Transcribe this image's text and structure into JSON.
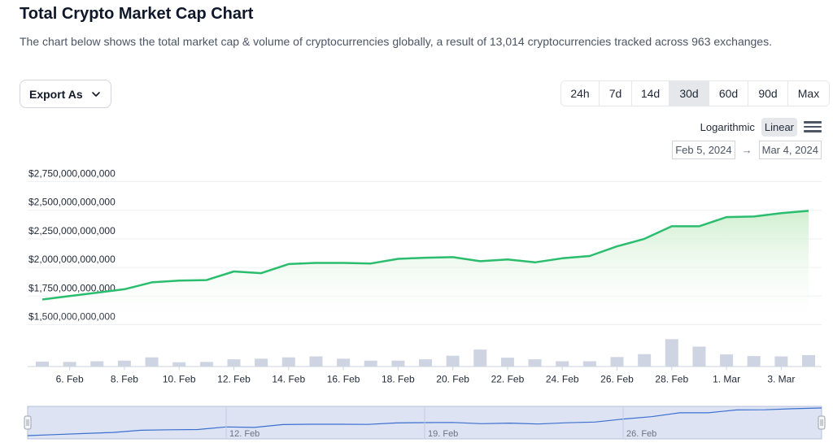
{
  "header": {
    "title": "Total Crypto Market Cap Chart",
    "description": "The chart below shows the total market cap & volume of cryptocurrencies globally, a result of 13,014 cryptocurrencies tracked across 963 exchanges."
  },
  "toolbar": {
    "export_label": "Export As",
    "ranges": [
      "24h",
      "7d",
      "14d",
      "30d",
      "60d",
      "90d",
      "Max"
    ],
    "active_range": "30d",
    "scale_options": [
      "Logarithmic",
      "Linear"
    ],
    "active_scale": "Linear",
    "date_from": "Feb 5, 2024",
    "date_to": "Mar 4, 2024",
    "date_arrow": "→"
  },
  "colors": {
    "line": "#2bbd6e",
    "area_top": "#c8ecc8",
    "volume_bar": "#cfd4e2",
    "navigator_fill": "#dde3f3",
    "navigator_line": "#3b6fd0"
  },
  "chart_data": {
    "type": "area",
    "title": "Total Crypto Market Cap Chart",
    "y_ticks": [
      "$1,500,000,000,000",
      "$1,750,000,000,000",
      "$2,000,000,000,000",
      "$2,250,000,000,000",
      "$2,500,000,000,000",
      "$2,750,000,000,000"
    ],
    "y_tick_values": [
      1500000000000,
      1750000000000,
      2000000000000,
      2250000000000,
      2500000000000,
      2750000000000
    ],
    "ylim": [
      1500000000000,
      2750000000000
    ],
    "x_ticks": [
      "6. Feb",
      "8. Feb",
      "10. Feb",
      "12. Feb",
      "14. Feb",
      "16. Feb",
      "18. Feb",
      "20. Feb",
      "22. Feb",
      "24. Feb",
      "26. Feb",
      "28. Feb",
      "1. Mar",
      "3. Mar"
    ],
    "x_tick_day_index": [
      1,
      3,
      5,
      7,
      9,
      11,
      13,
      15,
      17,
      19,
      21,
      23,
      25,
      27
    ],
    "dates": [
      "Feb 5",
      "Feb 6",
      "Feb 7",
      "Feb 8",
      "Feb 9",
      "Feb 10",
      "Feb 11",
      "Feb 12",
      "Feb 13",
      "Feb 14",
      "Feb 15",
      "Feb 16",
      "Feb 17",
      "Feb 18",
      "Feb 19",
      "Feb 20",
      "Feb 21",
      "Feb 22",
      "Feb 23",
      "Feb 24",
      "Feb 25",
      "Feb 26",
      "Feb 27",
      "Feb 28",
      "Feb 29",
      "Mar 1",
      "Mar 2",
      "Mar 3",
      "Mar 4"
    ],
    "series": [
      {
        "values": [
          1720000000000,
          1750000000000,
          1780000000000,
          1810000000000,
          1870000000000,
          1885000000000,
          1890000000000,
          1965000000000,
          1950000000000,
          2030000000000,
          2040000000000,
          2040000000000,
          2035000000000,
          2075000000000,
          2085000000000,
          2090000000000,
          2055000000000,
          2070000000000,
          2045000000000,
          2080000000000,
          2100000000000,
          2185000000000,
          2250000000000,
          2360000000000,
          2360000000000,
          2440000000000,
          2445000000000,
          2475000000000,
          2495000000000
        ]
      }
    ],
    "volume_relative": [
      0.14,
      0.13,
      0.15,
      0.17,
      0.27,
      0.12,
      0.13,
      0.21,
      0.23,
      0.27,
      0.3,
      0.23,
      0.17,
      0.17,
      0.21,
      0.32,
      0.51,
      0.26,
      0.21,
      0.15,
      0.15,
      0.28,
      0.37,
      0.83,
      0.6,
      0.36,
      0.31,
      0.3,
      0.34
    ],
    "navigator_ticks": [
      "12. Feb",
      "19. Feb",
      "26. Feb"
    ],
    "navigator_tick_day_index": [
      7,
      14,
      21
    ],
    "grid": true,
    "legend": "none"
  }
}
